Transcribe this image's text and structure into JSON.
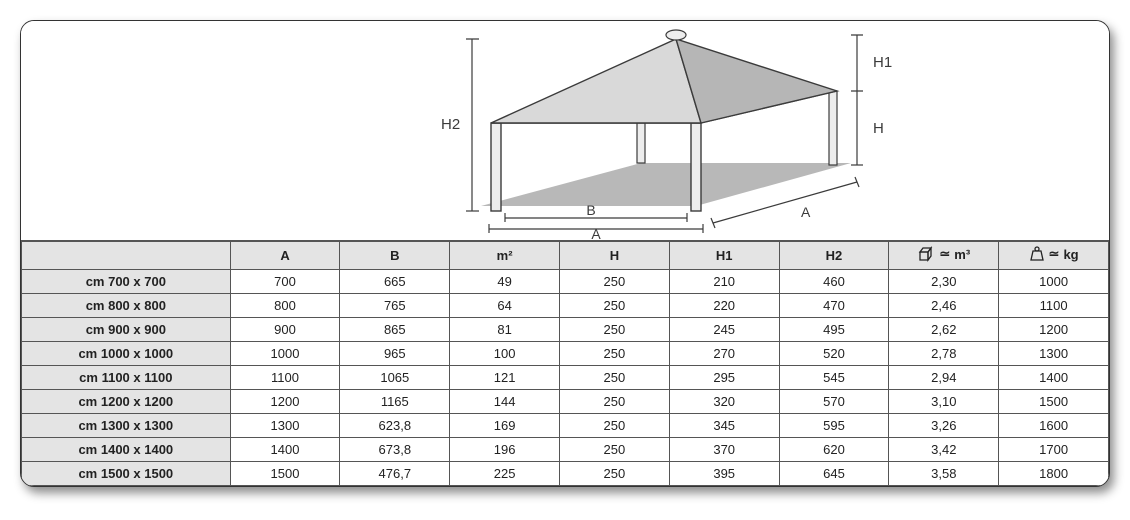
{
  "diagram": {
    "labels": {
      "A_bottom": "A",
      "A_right": "A",
      "B": "B",
      "H": "H",
      "H1": "H1",
      "H2": "H2"
    },
    "colors": {
      "stroke": "#3b3b3b",
      "roof_light": "#d9d9d9",
      "roof_dark": "#b6b6b6",
      "floor": "#b8b8b8",
      "legs": "#ededed",
      "text": "#3b3b3b"
    }
  },
  "table": {
    "columns": [
      "",
      "A",
      "B",
      "m²",
      "H",
      "H1",
      "H2",
      "vol_m3",
      "weight_kg"
    ],
    "header_colors": {
      "bg": "#e4e4e4",
      "text": "#222222",
      "border": "#555555"
    },
    "vol_label": "m³",
    "weight_label": "kg",
    "approx_glyph": "≃",
    "rows": [
      {
        "label": "cm 700 x 700",
        "A": "700",
        "B": "665",
        "m2": "49",
        "H": "250",
        "H1": "210",
        "H2": "460",
        "vol": "2,30",
        "kg": "1000"
      },
      {
        "label": "cm 800 x 800",
        "A": "800",
        "B": "765",
        "m2": "64",
        "H": "250",
        "H1": "220",
        "H2": "470",
        "vol": "2,46",
        "kg": "1100"
      },
      {
        "label": "cm 900 x 900",
        "A": "900",
        "B": "865",
        "m2": "81",
        "H": "250",
        "H1": "245",
        "H2": "495",
        "vol": "2,62",
        "kg": "1200"
      },
      {
        "label": "cm 1000 x 1000",
        "A": "1000",
        "B": "965",
        "m2": "100",
        "H": "250",
        "H1": "270",
        "H2": "520",
        "vol": "2,78",
        "kg": "1300"
      },
      {
        "label": "cm 1100 x 1100",
        "A": "1100",
        "B": "1065",
        "m2": "121",
        "H": "250",
        "H1": "295",
        "H2": "545",
        "vol": "2,94",
        "kg": "1400"
      },
      {
        "label": "cm 1200 x 1200",
        "A": "1200",
        "B": "1165",
        "m2": "144",
        "H": "250",
        "H1": "320",
        "H2": "570",
        "vol": "3,10",
        "kg": "1500"
      },
      {
        "label": "cm 1300 x 1300",
        "A": "1300",
        "B": "623,8",
        "m2": "169",
        "H": "250",
        "H1": "345",
        "H2": "595",
        "vol": "3,26",
        "kg": "1600"
      },
      {
        "label": "cm 1400 x 1400",
        "A": "1400",
        "B": "673,8",
        "m2": "196",
        "H": "250",
        "H1": "370",
        "H2": "620",
        "vol": "3,42",
        "kg": "1700"
      },
      {
        "label": "cm 1500 x 1500",
        "A": "1500",
        "B": "476,7",
        "m2": "225",
        "H": "250",
        "H1": "395",
        "H2": "645",
        "vol": "3,58",
        "kg": "1800"
      }
    ]
  }
}
